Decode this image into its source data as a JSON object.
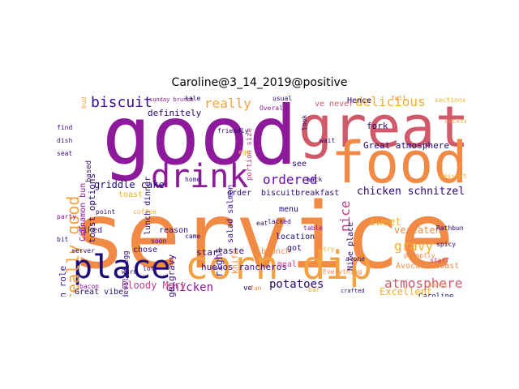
{
  "title": "Caroline@3_14_2019@positive",
  "words": [
    {
      "text": "service",
      "color": "#f08a45"
    },
    {
      "text": "good",
      "color": "#8c1a9b"
    },
    {
      "text": "great",
      "color": "#d0596a"
    },
    {
      "text": "food",
      "color": "#f08a45"
    },
    {
      "text": "corn dip",
      "color": "#f4a23f"
    },
    {
      "text": "place",
      "color": "#1d0a78"
    },
    {
      "text": "drink",
      "color": "#8c1a9b"
    },
    {
      "text": "really good",
      "color": "#f4a23f"
    },
    {
      "text": "biscuit",
      "color": "#3a0f8f"
    },
    {
      "text": "really",
      "color": "#f4a23f"
    },
    {
      "text": "delicious",
      "color": "#f0b02a"
    },
    {
      "text": "ordered",
      "color": "#6a0fa8"
    },
    {
      "text": "nice",
      "color": "#c23d8a"
    },
    {
      "text": "chicken schnitzel",
      "color": "#2a0a6e"
    },
    {
      "text": "gravy",
      "color": "#f0b02a"
    },
    {
      "text": "atmosphere",
      "color": "#d0596a"
    },
    {
      "text": "potatoes",
      "color": "#2a0a6e"
    },
    {
      "text": "chicken",
      "color": "#8c1a9b"
    },
    {
      "text": "Bloody Mary",
      "color": "#c23d8a"
    },
    {
      "text": "Great atmosphere",
      "color": "#1d0a78"
    },
    {
      "text": "griddle cake",
      "color": "#1d0a78"
    },
    {
      "text": "sweet",
      "color": "#f0b02a"
    },
    {
      "text": "ve eaten",
      "color": "#f08a45"
    },
    {
      "text": "Avocado toast",
      "color": "#f08a45"
    },
    {
      "text": "Excellent",
      "color": "#f0b02a"
    },
    {
      "text": "huevos rancheros",
      "color": "#3a0f8f"
    },
    {
      "text": "fork",
      "color": "#2a0a6e"
    },
    {
      "text": "definitely",
      "color": "#2a0a6e"
    },
    {
      "text": "toast options",
      "color": "#2a0a6e"
    },
    {
      "text": "Cinnamon bun",
      "color": "#8c1a9b"
    },
    {
      "text": "cinnamon role",
      "color": "#3a0f8f"
    },
    {
      "text": "Nice place",
      "color": "#2a0a6e"
    },
    {
      "text": "location",
      "color": "#1d0a78"
    },
    {
      "text": "menu",
      "color": "#1d0a78"
    },
    {
      "text": "meal",
      "color": "#c23d8a"
    },
    {
      "text": "right",
      "color": "#3a0f8f"
    },
    {
      "text": "salad salmon",
      "color": "#3a0f8f"
    },
    {
      "text": "sausage gravy",
      "color": "#3a0f8f"
    },
    {
      "text": "lunch dinner",
      "color": "#2a0a6e"
    },
    {
      "text": "brunch",
      "color": "#f08a45"
    },
    {
      "text": "biscuitbreakfast",
      "color": "#2a0a6e"
    },
    {
      "text": "order",
      "color": "#2a0a6e"
    },
    {
      "text": "taste",
      "color": "#2a0a6e"
    },
    {
      "text": "star",
      "color": "#2a0a6e"
    },
    {
      "text": "chose",
      "color": "#3a0f8f"
    },
    {
      "text": "reason",
      "color": "#3a0f8f"
    },
    {
      "text": "liked",
      "color": "#3a0f8f"
    },
    {
      "text": "Great vibe",
      "color": "#2a0a6e"
    },
    {
      "text": "Hence",
      "color": "#2a0a6e"
    },
    {
      "text": "ve never",
      "color": "#d0596a"
    },
    {
      "text": "server",
      "color": "#2a0a6e"
    },
    {
      "text": "knife",
      "color": "#f08a45"
    },
    {
      "text": "see",
      "color": "#2a0a6e"
    },
    {
      "text": "got",
      "color": "#2a0a6e"
    },
    {
      "text": "toast",
      "color": "#f0b02a"
    },
    {
      "text": "deviled egg",
      "color": "#3a0f8f"
    },
    {
      "text": "portion size",
      "color": "#c23d8a"
    },
    {
      "text": "Caroline",
      "color": "#2a0a6e"
    },
    {
      "text": "ve",
      "color": "#2a0a6e"
    },
    {
      "text": "bacon",
      "color": "#8c1a9b"
    },
    {
      "text": "based",
      "color": "#3a0f8f"
    },
    {
      "text": "point",
      "color": "#2a0a6e"
    },
    {
      "text": "lacked",
      "color": "#3a0f8f"
    },
    {
      "text": "Everything",
      "color": "#f08a45"
    },
    {
      "text": "Overall",
      "color": "#8c1a9b"
    },
    {
      "text": "look",
      "color": "#2a0a6e"
    },
    {
      "text": "usual",
      "color": "#2a0a6e"
    },
    {
      "text": "bud",
      "color": "#f4a23f"
    },
    {
      "text": "promptly",
      "color": "#f08a45"
    },
    {
      "text": "lot",
      "color": "#2a0a6e"
    },
    {
      "text": "eat",
      "color": "#2a0a6e"
    },
    {
      "text": "friendly",
      "color": "#2a0a6e"
    },
    {
      "text": "alone",
      "color": "#2a0a6e"
    },
    {
      "text": "sunday brunch",
      "color": "#8c1a9b"
    },
    {
      "text": "crafted",
      "color": "#2a0a6e"
    },
    {
      "text": "sections",
      "color": "#f0b02a"
    },
    {
      "text": "came",
      "color": "#2a0a6e"
    },
    {
      "text": "fell",
      "color": "#f08a45"
    },
    {
      "text": "find",
      "color": "#3a0f8f"
    },
    {
      "text": "dish",
      "color": "#3a0f8f"
    },
    {
      "text": "seat",
      "color": "#3a0f8f"
    },
    {
      "text": "party",
      "color": "#8c1a9b"
    },
    {
      "text": "bit",
      "color": "#3a0f8f"
    },
    {
      "text": "dessert",
      "color": "#f0b02a"
    },
    {
      "text": "Rathbun",
      "color": "#2a0a6e"
    },
    {
      "text": "bonus",
      "color": "#f08a45"
    },
    {
      "text": "table",
      "color": "#8c1a9b"
    },
    {
      "text": "wait",
      "color": "#2a0a6e"
    },
    {
      "text": "back",
      "color": "#2a0a6e"
    },
    {
      "text": "soon",
      "color": "#3a0f8f"
    },
    {
      "text": "staff",
      "color": "#c23d8a"
    },
    {
      "text": "home",
      "color": "#3a0f8f"
    },
    {
      "text": "try",
      "color": "#f0b02a"
    },
    {
      "text": "spicy",
      "color": "#2a0a6e"
    },
    {
      "text": "kale",
      "color": "#2a0a6e"
    },
    {
      "text": "warm",
      "color": "#2a0a6e"
    },
    {
      "text": "coffee",
      "color": "#f0b02a"
    },
    {
      "text": "cocktail",
      "color": "#f4a23f"
    },
    {
      "text": "egg",
      "color": "#f0b02a"
    },
    {
      "text": "fun",
      "color": "#f08a45"
    },
    {
      "text": "bar",
      "color": "#f0b02a"
    }
  ]
}
